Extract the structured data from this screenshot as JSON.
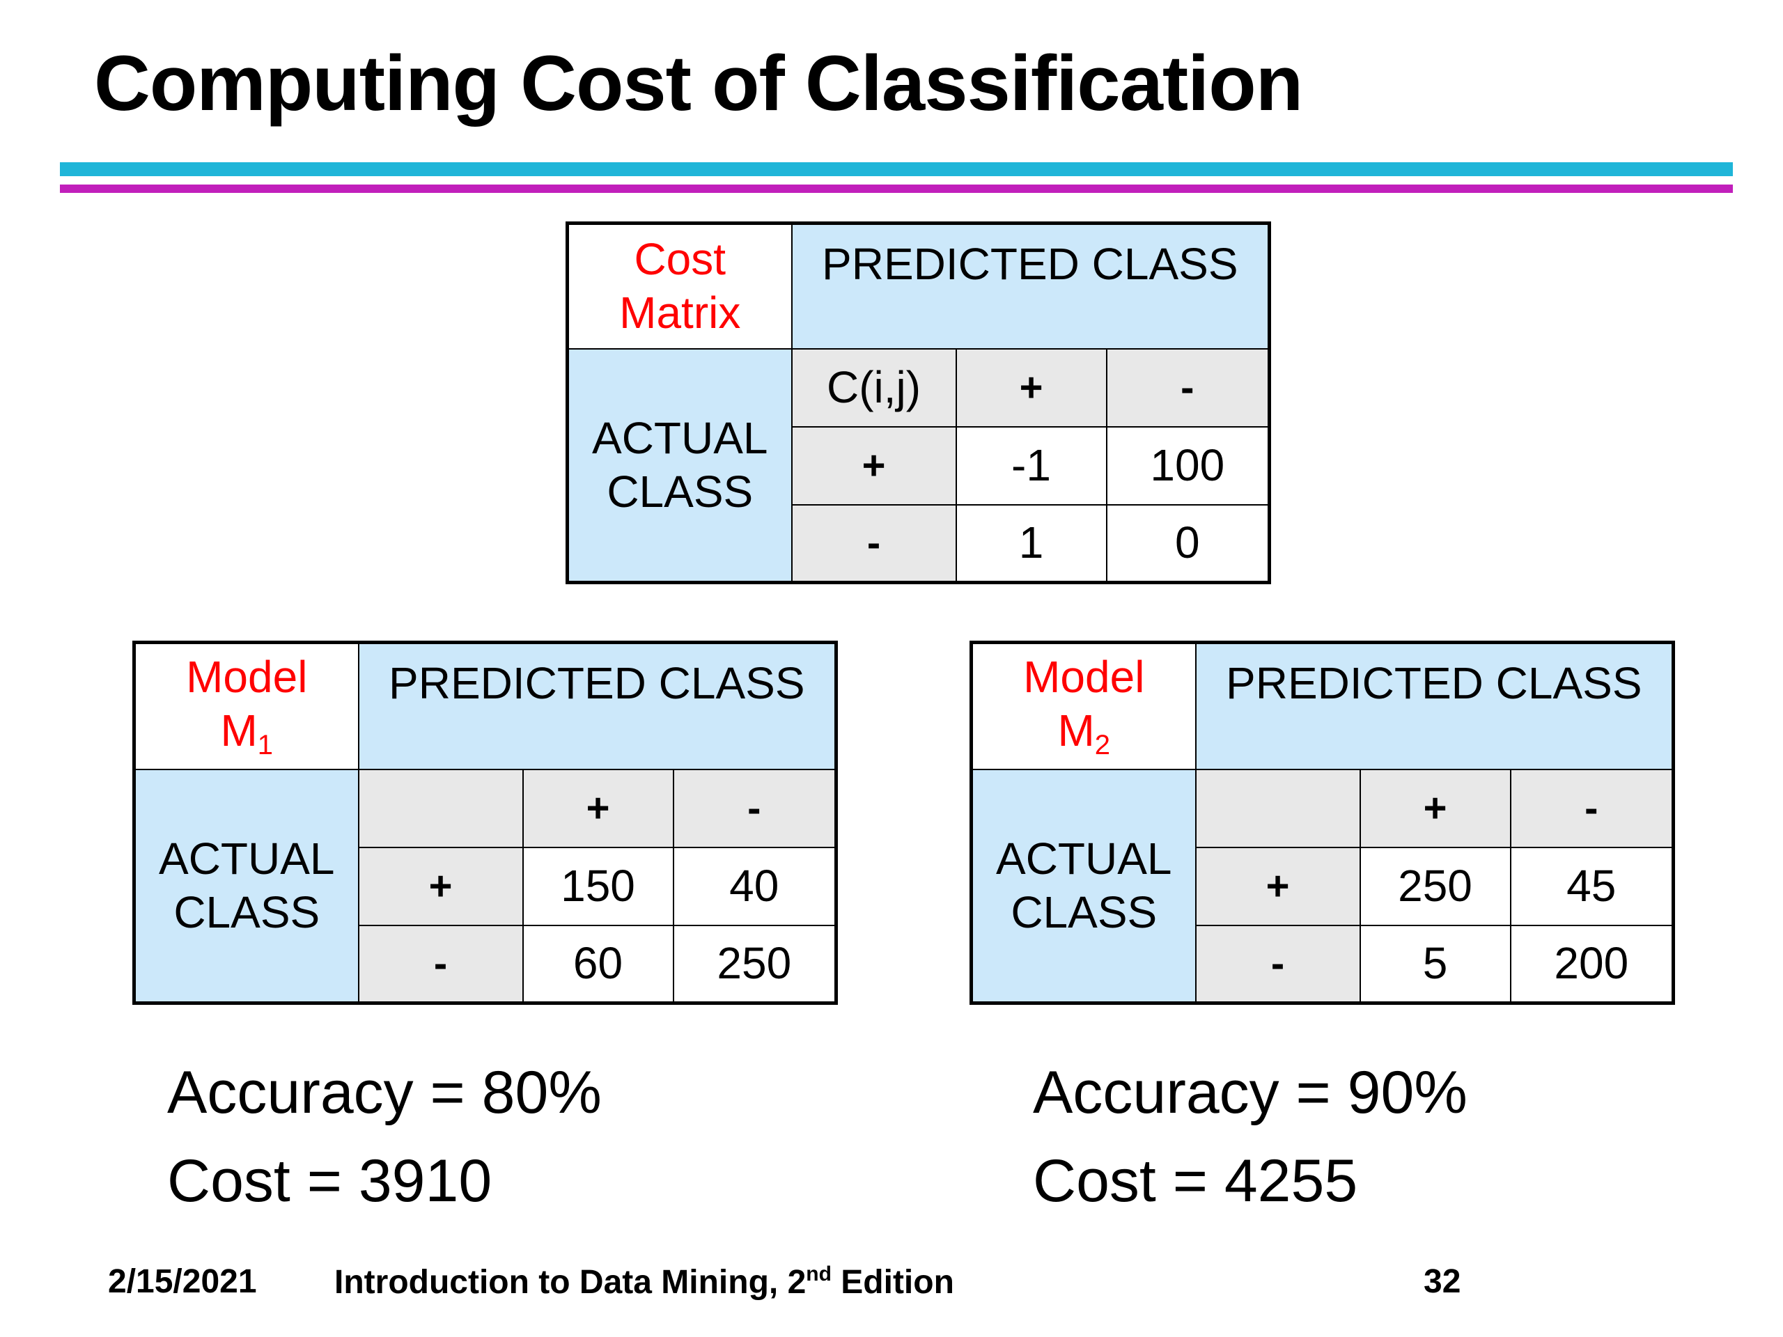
{
  "slide": {
    "title": "Computing Cost of Classification"
  },
  "cost_matrix": {
    "corner_line1": "Cost",
    "corner_line2": "Matrix",
    "predicted_header": "PREDICTED CLASS",
    "actual_line1": "ACTUAL",
    "actual_line2": "CLASS",
    "cell_label": "C(i,j)",
    "col_plus": "+",
    "col_minus": "-",
    "row_plus": "+",
    "row_minus": "-",
    "rows": [
      [
        "-1",
        "100"
      ],
      [
        "1",
        "0"
      ]
    ]
  },
  "model1": {
    "corner_line1": "Model",
    "corner_letter": "M",
    "corner_sub": "1",
    "predicted_header": "PREDICTED CLASS",
    "actual_line1": "ACTUAL",
    "actual_line2": "CLASS",
    "col_plus": "+",
    "col_minus": "-",
    "row_plus": "+",
    "row_minus": "-",
    "rows": [
      [
        "150",
        "40"
      ],
      [
        "60",
        "250"
      ]
    ],
    "accuracy": "Accuracy = 80%",
    "cost": "Cost = 3910"
  },
  "model2": {
    "corner_line1": "Model",
    "corner_letter": "M",
    "corner_sub": "2",
    "predicted_header": "PREDICTED CLASS",
    "actual_line1": "ACTUAL",
    "actual_line2": "CLASS",
    "col_plus": "+",
    "col_minus": "-",
    "row_plus": "+",
    "row_minus": "-",
    "rows": [
      [
        "250",
        "45"
      ],
      [
        "5",
        "200"
      ]
    ],
    "accuracy": "Accuracy = 90%",
    "cost": "Cost = 4255"
  },
  "footer": {
    "date": "2/15/2021",
    "book_prefix": "Introduction to Data Mining, 2",
    "book_sup": "nd",
    "book_suffix": " Edition",
    "page_number": "32"
  },
  "colors": {
    "accent_red": "#ff0000",
    "cell_blue": "#cce8fa",
    "cell_gray": "#e8e8e8",
    "rule_cyan": "#1fb5d8",
    "rule_magenta": "#c11fbb"
  }
}
